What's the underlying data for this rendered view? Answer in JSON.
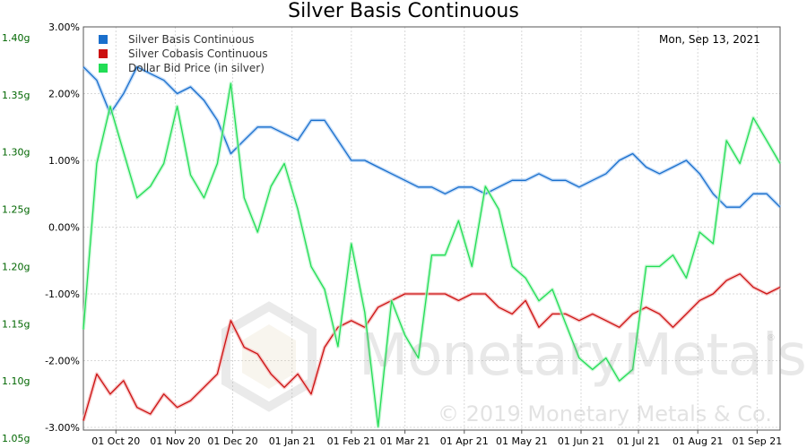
{
  "chart_data": {
    "type": "line",
    "title": "Silver Basis Continuous",
    "date_label": "Mon, Sep 13, 2021",
    "x_tick_labels": [
      "01 Oct 20",
      "01 Nov 20",
      "01 Dec 20",
      "01 Jan 21",
      "01 Feb 21",
      "01 Mar 21",
      "01 Apr 21",
      "01 May 21",
      "01 Jun 21",
      "01 Jul 21",
      "01 Aug 21",
      "01 Sep 21"
    ],
    "x_range": [
      "2020-09-14",
      "2021-09-13"
    ],
    "y_left": {
      "tick_labels": [
        "1.40g",
        "1.35g",
        "1.30g",
        "1.25g",
        "1.20g",
        "1.15g",
        "1.10g",
        "1.05g"
      ],
      "range": [
        1.05,
        1.4
      ]
    },
    "y_right": {
      "tick_labels": [
        "3.00%",
        "2.00%",
        "1.00%",
        "0.00%",
        "-1.00%",
        "-2.00%",
        "-3.00%"
      ],
      "range": [
        -3.0,
        3.0
      ]
    },
    "grid": true,
    "legend_position": "top-left",
    "series": [
      {
        "name": "Silver Basis Continuous",
        "color": "#1a6fcc",
        "axis": "right",
        "x": [
          "2020-09-14",
          "2020-09-21",
          "2020-09-28",
          "2020-10-05",
          "2020-10-12",
          "2020-10-19",
          "2020-10-26",
          "2020-11-02",
          "2020-11-09",
          "2020-11-16",
          "2020-11-23",
          "2020-11-30",
          "2020-12-07",
          "2020-12-14",
          "2020-12-21",
          "2020-12-28",
          "2021-01-04",
          "2021-01-11",
          "2021-01-18",
          "2021-01-25",
          "2021-02-01",
          "2021-02-08",
          "2021-02-15",
          "2021-02-22",
          "2021-03-01",
          "2021-03-08",
          "2021-03-15",
          "2021-03-22",
          "2021-03-29",
          "2021-04-05",
          "2021-04-12",
          "2021-04-19",
          "2021-04-26",
          "2021-05-03",
          "2021-05-10",
          "2021-05-17",
          "2021-05-24",
          "2021-05-31",
          "2021-06-07",
          "2021-06-14",
          "2021-06-21",
          "2021-06-28",
          "2021-07-05",
          "2021-07-12",
          "2021-07-19",
          "2021-07-26",
          "2021-08-02",
          "2021-08-09",
          "2021-08-16",
          "2021-08-23",
          "2021-08-30",
          "2021-09-06",
          "2021-09-13"
        ],
        "y": [
          2.4,
          2.2,
          1.7,
          2.0,
          2.4,
          2.3,
          2.2,
          2.0,
          2.1,
          1.9,
          1.6,
          1.1,
          1.3,
          1.5,
          1.5,
          1.4,
          1.3,
          1.6,
          1.6,
          1.3,
          1.0,
          1.0,
          0.9,
          0.8,
          0.7,
          0.6,
          0.6,
          0.5,
          0.6,
          0.6,
          0.5,
          0.6,
          0.7,
          0.7,
          0.8,
          0.7,
          0.7,
          0.6,
          0.7,
          0.8,
          1.0,
          1.1,
          0.9,
          0.8,
          0.9,
          1.0,
          0.8,
          0.5,
          0.3,
          0.3,
          0.5,
          0.5,
          0.3
        ]
      },
      {
        "name": "Silver Cobasis Continuous",
        "color": "#cc1111",
        "axis": "right",
        "x": [
          "2020-09-14",
          "2020-09-21",
          "2020-09-28",
          "2020-10-05",
          "2020-10-12",
          "2020-10-19",
          "2020-10-26",
          "2020-11-02",
          "2020-11-09",
          "2020-11-16",
          "2020-11-23",
          "2020-11-30",
          "2020-12-07",
          "2020-12-14",
          "2020-12-21",
          "2020-12-28",
          "2021-01-04",
          "2021-01-11",
          "2021-01-18",
          "2021-01-25",
          "2021-02-01",
          "2021-02-08",
          "2021-02-15",
          "2021-02-22",
          "2021-03-01",
          "2021-03-08",
          "2021-03-15",
          "2021-03-22",
          "2021-03-29",
          "2021-04-05",
          "2021-04-12",
          "2021-04-19",
          "2021-04-26",
          "2021-05-03",
          "2021-05-10",
          "2021-05-17",
          "2021-05-24",
          "2021-05-31",
          "2021-06-07",
          "2021-06-14",
          "2021-06-21",
          "2021-06-28",
          "2021-07-05",
          "2021-07-12",
          "2021-07-19",
          "2021-07-26",
          "2021-08-02",
          "2021-08-09",
          "2021-08-16",
          "2021-08-23",
          "2021-08-30",
          "2021-09-06",
          "2021-09-13"
        ],
        "y": [
          -2.9,
          -2.2,
          -2.5,
          -2.3,
          -2.7,
          -2.8,
          -2.5,
          -2.7,
          -2.6,
          -2.4,
          -2.2,
          -1.4,
          -1.8,
          -1.9,
          -2.2,
          -2.4,
          -2.2,
          -2.5,
          -1.8,
          -1.5,
          -1.4,
          -1.5,
          -1.2,
          -1.1,
          -1.0,
          -1.0,
          -1.0,
          -1.0,
          -1.1,
          -1.0,
          -1.0,
          -1.2,
          -1.3,
          -1.1,
          -1.5,
          -1.3,
          -1.3,
          -1.4,
          -1.3,
          -1.4,
          -1.5,
          -1.3,
          -1.2,
          -1.3,
          -1.5,
          -1.3,
          -1.1,
          -1.0,
          -0.8,
          -0.7,
          -0.9,
          -1.0,
          -0.9
        ]
      },
      {
        "name": "Dollar Bid Price (in silver)",
        "color": "#22dd55",
        "axis": "left",
        "x": [
          "2020-09-14",
          "2020-09-21",
          "2020-09-28",
          "2020-10-05",
          "2020-10-12",
          "2020-10-19",
          "2020-10-26",
          "2020-11-02",
          "2020-11-09",
          "2020-11-16",
          "2020-11-23",
          "2020-11-30",
          "2020-12-07",
          "2020-12-14",
          "2020-12-21",
          "2020-12-28",
          "2021-01-04",
          "2021-01-11",
          "2021-01-18",
          "2021-01-25",
          "2021-02-01",
          "2021-02-08",
          "2021-02-15",
          "2021-02-22",
          "2021-03-01",
          "2021-03-08",
          "2021-03-15",
          "2021-03-22",
          "2021-03-29",
          "2021-04-05",
          "2021-04-12",
          "2021-04-19",
          "2021-04-26",
          "2021-05-03",
          "2021-05-10",
          "2021-05-17",
          "2021-05-24",
          "2021-05-31",
          "2021-06-07",
          "2021-06-14",
          "2021-06-21",
          "2021-06-28",
          "2021-07-05",
          "2021-07-12",
          "2021-07-19",
          "2021-07-26",
          "2021-08-02",
          "2021-08-09",
          "2021-08-16",
          "2021-08-23",
          "2021-08-30",
          "2021-09-06",
          "2021-09-13"
        ],
        "y": [
          1.145,
          1.29,
          1.34,
          1.3,
          1.26,
          1.27,
          1.29,
          1.34,
          1.28,
          1.26,
          1.29,
          1.36,
          1.26,
          1.23,
          1.27,
          1.29,
          1.25,
          1.2,
          1.18,
          1.13,
          1.22,
          1.16,
          1.06,
          1.17,
          1.14,
          1.12,
          1.21,
          1.21,
          1.24,
          1.2,
          1.27,
          1.25,
          1.2,
          1.19,
          1.17,
          1.18,
          1.15,
          1.12,
          1.11,
          1.12,
          1.1,
          1.11,
          1.2,
          1.2,
          1.21,
          1.19,
          1.23,
          1.22,
          1.31,
          1.29,
          1.33,
          1.31,
          1.29
        ]
      }
    ]
  },
  "watermark": {
    "name": "MonetaryMetals",
    "copyright": "© 2019 Monetary Metals & Co.",
    "registered": "®"
  }
}
